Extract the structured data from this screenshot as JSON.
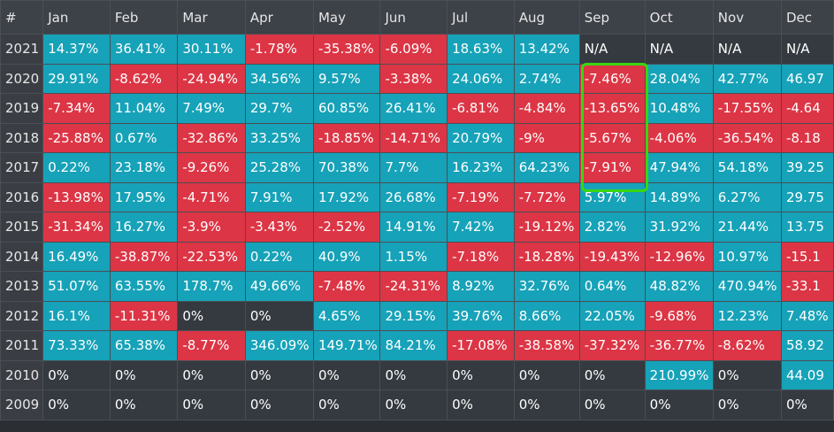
{
  "headers": [
    "#",
    "Jan",
    "Feb",
    "Mar",
    "Apr",
    "May",
    "Jun",
    "Jul",
    "Aug",
    "Sep",
    "Oct",
    "Nov",
    "Dec"
  ],
  "rows": [
    {
      "year": "2021",
      "cells": [
        "14.37%",
        "36.41%",
        "30.11%",
        "-1.78%",
        "-35.38%",
        "-6.09%",
        "18.63%",
        "13.42%",
        "N/A",
        "N/A",
        "N/A",
        "N/A"
      ]
    },
    {
      "year": "2020",
      "cells": [
        "29.91%",
        "-8.62%",
        "-24.94%",
        "34.56%",
        "9.57%",
        "-3.38%",
        "24.06%",
        "2.74%",
        "-7.46%",
        "28.04%",
        "42.77%",
        "46.97"
      ]
    },
    {
      "year": "2019",
      "cells": [
        "-7.34%",
        "11.04%",
        "7.49%",
        "29.7%",
        "60.85%",
        "26.41%",
        "-6.81%",
        "-4.84%",
        "-13.65%",
        "10.48%",
        "-17.55%",
        "-4.64"
      ]
    },
    {
      "year": "2018",
      "cells": [
        "-25.88%",
        "0.67%",
        "-32.86%",
        "33.25%",
        "-18.85%",
        "-14.71%",
        "20.79%",
        "-9%",
        "-5.67%",
        "-4.06%",
        "-36.54%",
        "-8.18"
      ]
    },
    {
      "year": "2017",
      "cells": [
        "0.22%",
        "23.18%",
        "-9.26%",
        "25.28%",
        "70.38%",
        "7.7%",
        "16.23%",
        "64.23%",
        "-7.91%",
        "47.94%",
        "54.18%",
        "39.25"
      ]
    },
    {
      "year": "2016",
      "cells": [
        "-13.98%",
        "17.95%",
        "-4.71%",
        "7.91%",
        "17.92%",
        "26.68%",
        "-7.19%",
        "-7.72%",
        "5.97%",
        "14.89%",
        "6.27%",
        "29.75"
      ]
    },
    {
      "year": "2015",
      "cells": [
        "-31.34%",
        "16.27%",
        "-3.9%",
        "-3.43%",
        "-2.52%",
        "14.91%",
        "7.42%",
        "-19.12%",
        "2.82%",
        "31.92%",
        "21.44%",
        "13.75"
      ]
    },
    {
      "year": "2014",
      "cells": [
        "16.49%",
        "-38.87%",
        "-22.53%",
        "0.22%",
        "40.9%",
        "1.15%",
        "-7.18%",
        "-18.28%",
        "-19.43%",
        "-12.96%",
        "10.97%",
        "-15.1"
      ]
    },
    {
      "year": "2013",
      "cells": [
        "51.07%",
        "63.55%",
        "178.7%",
        "49.66%",
        "-7.48%",
        "-24.31%",
        "8.92%",
        "32.76%",
        "0.64%",
        "48.82%",
        "470.94%",
        "-33.1"
      ]
    },
    {
      "year": "2012",
      "cells": [
        "16.1%",
        "-11.31%",
        "0%",
        "0%",
        "4.65%",
        "29.15%",
        "39.76%",
        "8.66%",
        "22.05%",
        "-9.68%",
        "12.23%",
        "7.48%"
      ]
    },
    {
      "year": "2011",
      "cells": [
        "73.33%",
        "65.38%",
        "-8.77%",
        "346.09%",
        "149.71%",
        "84.21%",
        "-17.08%",
        "-38.58%",
        "-37.32%",
        "-36.77%",
        "-8.62%",
        "58.92"
      ]
    },
    {
      "year": "2010",
      "cells": [
        "0%",
        "0%",
        "0%",
        "0%",
        "0%",
        "0%",
        "0%",
        "0%",
        "0%",
        "210.99%",
        "0%",
        "44.09"
      ]
    },
    {
      "year": "2009",
      "cells": [
        "0%",
        "0%",
        "0%",
        "0%",
        "0%",
        "0%",
        "0%",
        "0%",
        "0%",
        "0%",
        "0%",
        "0%"
      ]
    }
  ],
  "colors": {
    "positive": "#16a2b8",
    "negative": "#dc3545",
    "neutral": "#343a40",
    "highlight": "#39d611"
  }
}
